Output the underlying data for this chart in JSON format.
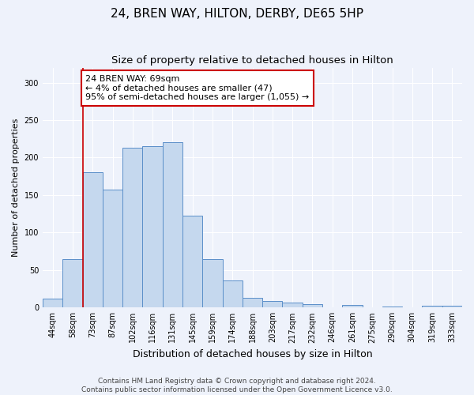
{
  "title": "24, BREN WAY, HILTON, DERBY, DE65 5HP",
  "subtitle": "Size of property relative to detached houses in Hilton",
  "xlabel": "Distribution of detached houses by size in Hilton",
  "ylabel": "Number of detached properties",
  "categories": [
    "44sqm",
    "58sqm",
    "73sqm",
    "87sqm",
    "102sqm",
    "116sqm",
    "131sqm",
    "145sqm",
    "159sqm",
    "174sqm",
    "188sqm",
    "203sqm",
    "217sqm",
    "232sqm",
    "246sqm",
    "261sqm",
    "275sqm",
    "290sqm",
    "304sqm",
    "319sqm",
    "333sqm"
  ],
  "values": [
    12,
    65,
    180,
    157,
    213,
    215,
    220,
    123,
    65,
    36,
    13,
    9,
    7,
    5,
    0,
    3,
    0,
    1,
    0,
    2,
    2
  ],
  "bar_color": "#c5d8ee",
  "bar_edge_color": "#5b8fc9",
  "annotation_line1": "24 BREN WAY: 69sqm",
  "annotation_line2": "← 4% of detached houses are smaller (47)",
  "annotation_line3": "95% of semi-detached houses are larger (1,055) →",
  "annotation_box_color": "#ffffff",
  "annotation_box_edge": "#cc0000",
  "vline_color": "#cc0000",
  "vline_x_index": 1.5,
  "ylim": [
    0,
    320
  ],
  "yticks": [
    0,
    50,
    100,
    150,
    200,
    250,
    300
  ],
  "footnote_line1": "Contains HM Land Registry data © Crown copyright and database right 2024.",
  "footnote_line2": "Contains public sector information licensed under the Open Government Licence v3.0.",
  "background_color": "#eef2fb",
  "grid_color": "#ffffff",
  "title_fontsize": 11,
  "subtitle_fontsize": 9.5,
  "xlabel_fontsize": 9,
  "ylabel_fontsize": 8,
  "tick_fontsize": 7,
  "annotation_fontsize": 8,
  "footnote_fontsize": 6.5
}
